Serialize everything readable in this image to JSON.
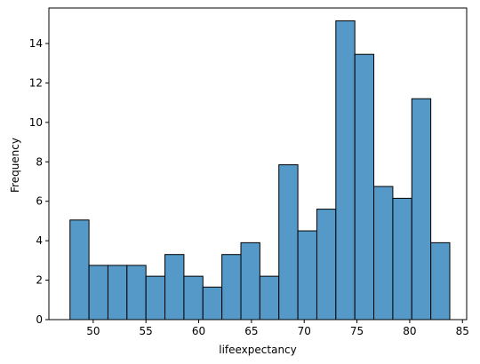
{
  "chart_data": {
    "type": "bar",
    "subtype": "histogram",
    "xlabel": "lifeexpectancy",
    "ylabel": "Frequency",
    "xlim": [
      45.8,
      85.4
    ],
    "ylim": [
      0,
      15.8
    ],
    "xticks": [
      50,
      55,
      60,
      65,
      70,
      75,
      80,
      85
    ],
    "yticks": [
      0,
      2,
      4,
      6,
      8,
      10,
      12,
      14
    ],
    "bar_color": "#5499c7",
    "edge_color": "#000000",
    "grid": false,
    "bins": [
      {
        "x0": 47.8,
        "x1": 49.6,
        "value": 5.05
      },
      {
        "x0": 49.6,
        "x1": 51.4,
        "value": 2.75
      },
      {
        "x0": 51.4,
        "x1": 53.2,
        "value": 2.75
      },
      {
        "x0": 53.2,
        "x1": 55.0,
        "value": 2.75
      },
      {
        "x0": 55.0,
        "x1": 56.8,
        "value": 2.2
      },
      {
        "x0": 56.8,
        "x1": 58.6,
        "value": 3.3
      },
      {
        "x0": 58.6,
        "x1": 60.4,
        "value": 2.2
      },
      {
        "x0": 60.4,
        "x1": 62.2,
        "value": 1.65
      },
      {
        "x0": 62.2,
        "x1": 64.0,
        "value": 3.3
      },
      {
        "x0": 64.0,
        "x1": 65.8,
        "value": 3.9
      },
      {
        "x0": 65.8,
        "x1": 67.6,
        "value": 2.2
      },
      {
        "x0": 67.6,
        "x1": 69.4,
        "value": 7.85
      },
      {
        "x0": 69.4,
        "x1": 71.2,
        "value": 4.5
      },
      {
        "x0": 71.2,
        "x1": 73.0,
        "value": 5.6
      },
      {
        "x0": 73.0,
        "x1": 74.8,
        "value": 15.15
      },
      {
        "x0": 74.8,
        "x1": 76.6,
        "value": 13.45
      },
      {
        "x0": 76.6,
        "x1": 78.4,
        "value": 6.75
      },
      {
        "x0": 78.4,
        "x1": 80.2,
        "value": 6.15
      },
      {
        "x0": 80.2,
        "x1": 82.0,
        "value": 11.2
      },
      {
        "x0": 82.0,
        "x1": 83.8,
        "value": 3.9
      }
    ]
  }
}
